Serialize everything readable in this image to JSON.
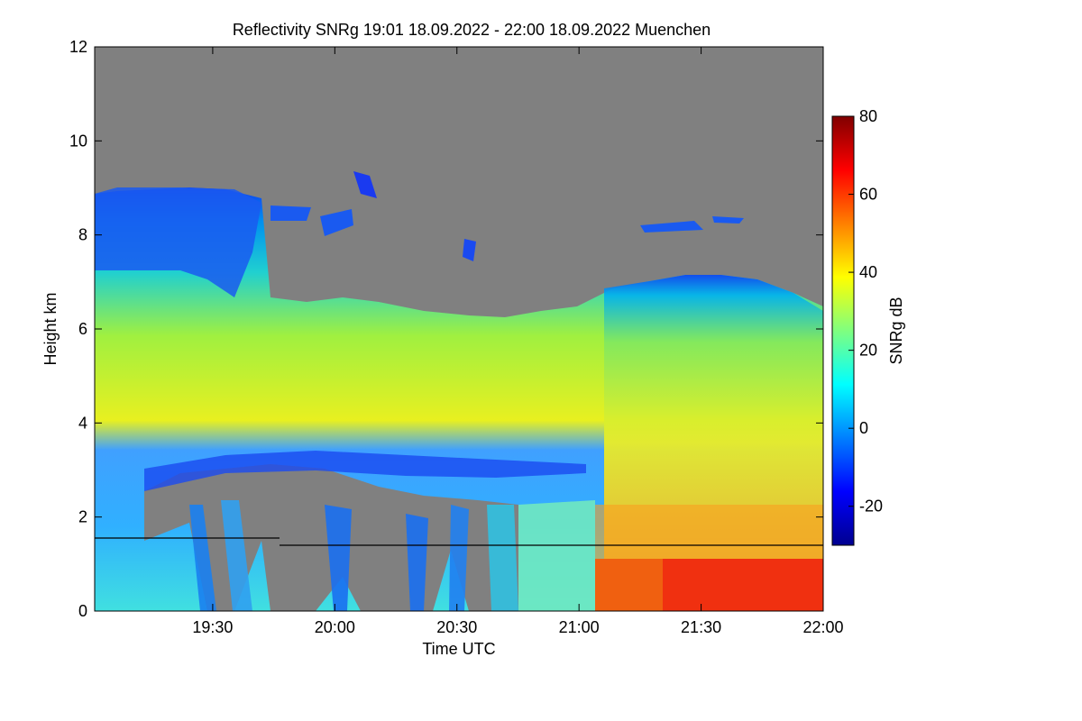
{
  "chart_data": {
    "type": "heatmap",
    "title": "Reflectivity SNRg   19:01 18.09.2022 - 22:00 18.09.2022 Muenchen",
    "xlabel": "Time UTC",
    "ylabel": "Height km",
    "colorbar_label": "SNRg dB",
    "xlim": [
      "19:01",
      "22:00"
    ],
    "ylim": [
      0,
      12
    ],
    "x_ticks": [
      "19:30",
      "20:00",
      "20:30",
      "21:00",
      "21:30",
      "22:00"
    ],
    "y_ticks": [
      "0",
      "2",
      "4",
      "6",
      "8",
      "10",
      "12"
    ],
    "colorbar_range": [
      -30,
      80
    ],
    "colorbar_ticks": [
      "-20",
      "0",
      "20",
      "40",
      "60",
      "80"
    ],
    "background_color": "#808080",
    "reference_line_height_km": [
      1.55,
      1.4
    ],
    "layers": [
      {
        "description": "ice cloud top",
        "height_km": [
          6.2,
          9.0
        ]
      },
      {
        "description": "melting layer / bright band",
        "height_km": [
          2.8,
          3.3
        ]
      },
      {
        "description": "strong rain near ground after 21:05",
        "height_km": [
          0,
          1.0
        ],
        "snr_db": [
          60,
          70
        ]
      }
    ]
  }
}
